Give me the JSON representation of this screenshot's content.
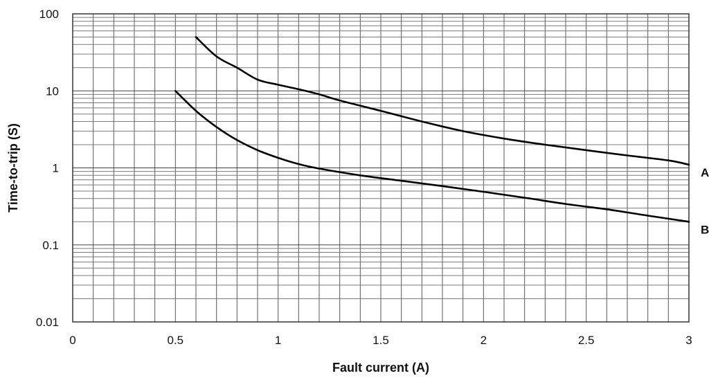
{
  "chart_data": {
    "type": "line",
    "xlabel": "Fault current (A)",
    "ylabel": "Time-to-trip (S)",
    "xlim": [
      0,
      3
    ],
    "ylim": [
      0.01,
      100
    ],
    "y_scale": "log",
    "grid": true,
    "x_ticks": [
      {
        "value": 0,
        "label": "0"
      },
      {
        "value": 0.5,
        "label": "0.5"
      },
      {
        "value": 1,
        "label": "1"
      },
      {
        "value": 1.5,
        "label": "1.5"
      },
      {
        "value": 2,
        "label": "2"
      },
      {
        "value": 2.5,
        "label": "2.5"
      },
      {
        "value": 3,
        "label": "3"
      }
    ],
    "y_ticks": [
      {
        "value": 100,
        "label": "100"
      },
      {
        "value": 10,
        "label": "10"
      },
      {
        "value": 1,
        "label": "1"
      },
      {
        "value": 0.1,
        "label": "0.1"
      },
      {
        "value": 0.01,
        "label": "0.01"
      }
    ],
    "series": [
      {
        "name": "A",
        "x": [
          0.6,
          0.7,
          0.8,
          0.9,
          1.0,
          1.1,
          1.2,
          1.3,
          1.5,
          1.7,
          1.9,
          2.1,
          2.3,
          2.5,
          2.7,
          2.9,
          3.0
        ],
        "y": [
          50,
          28,
          20,
          14,
          12,
          10.5,
          9,
          7.5,
          5.5,
          4,
          3,
          2.4,
          2.0,
          1.7,
          1.45,
          1.25,
          1.1
        ]
      },
      {
        "name": "B",
        "x": [
          0.5,
          0.6,
          0.7,
          0.8,
          0.9,
          1.0,
          1.1,
          1.2,
          1.4,
          1.6,
          1.8,
          2.0,
          2.2,
          2.4,
          2.6,
          2.8,
          3.0
        ],
        "y": [
          10,
          5.5,
          3.4,
          2.3,
          1.7,
          1.35,
          1.12,
          0.98,
          0.8,
          0.68,
          0.58,
          0.49,
          0.41,
          0.34,
          0.29,
          0.24,
          0.2
        ]
      }
    ]
  }
}
